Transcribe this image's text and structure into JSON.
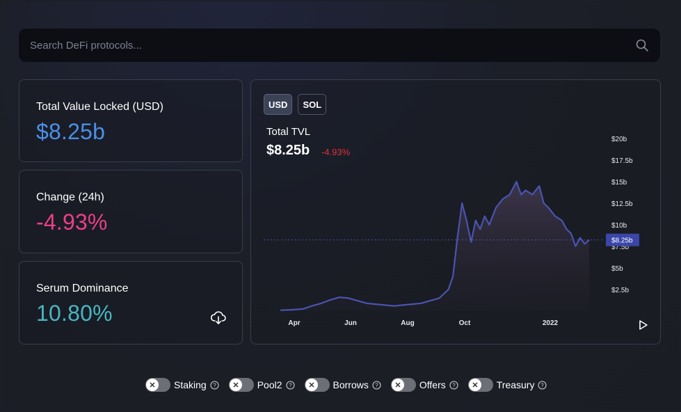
{
  "search": {
    "placeholder": "Search DeFi protocols..."
  },
  "stats": [
    {
      "label": "Total Value Locked (USD)",
      "value": "$8.25b",
      "color": "#4a90e8"
    },
    {
      "label": "Change (24h)",
      "value": "-4.93%",
      "color": "#ec3f89"
    },
    {
      "label": "Serum Dominance",
      "value": "10.80%",
      "color": "#47b6c2"
    }
  ],
  "chart": {
    "toggles": [
      {
        "label": "USD",
        "active": true
      },
      {
        "label": "SOL",
        "active": false
      }
    ],
    "title": "Total TVL",
    "value": "$8.25b",
    "change": "-4.93%",
    "current_label": "$8.25b"
  },
  "chart_data": {
    "type": "area",
    "x_ticks": [
      "Apr",
      "Jun",
      "Aug",
      "Oct",
      "2022"
    ],
    "y_ticks": [
      "$2.5b",
      "$5b",
      "$7.5b",
      "$10b",
      "$12.5b",
      "$15b",
      "$17.5b",
      "$20b"
    ],
    "ylim": [
      0,
      20
    ],
    "current_value": 8.25,
    "color": "#4a54b0",
    "points": [
      {
        "t": 0,
        "v": 0.1
      },
      {
        "t": 5,
        "v": 0.15
      },
      {
        "t": 10,
        "v": 0.25
      },
      {
        "t": 14,
        "v": 0.6
      },
      {
        "t": 18,
        "v": 0.9
      },
      {
        "t": 22,
        "v": 1.3
      },
      {
        "t": 26,
        "v": 1.6
      },
      {
        "t": 30,
        "v": 1.5
      },
      {
        "t": 34,
        "v": 1.2
      },
      {
        "t": 38,
        "v": 0.9
      },
      {
        "t": 42,
        "v": 0.8
      },
      {
        "t": 46,
        "v": 0.7
      },
      {
        "t": 50,
        "v": 0.6
      },
      {
        "t": 54,
        "v": 0.7
      },
      {
        "t": 58,
        "v": 0.8
      },
      {
        "t": 62,
        "v": 0.9
      },
      {
        "t": 66,
        "v": 1.2
      },
      {
        "t": 70,
        "v": 1.5
      },
      {
        "t": 74,
        "v": 2.5
      },
      {
        "t": 76,
        "v": 4.0
      },
      {
        "t": 78,
        "v": 8.5
      },
      {
        "t": 80,
        "v": 12.5
      },
      {
        "t": 82,
        "v": 10.5
      },
      {
        "t": 84,
        "v": 8.0
      },
      {
        "t": 86,
        "v": 10.5
      },
      {
        "t": 88,
        "v": 9.5
      },
      {
        "t": 90,
        "v": 11.0
      },
      {
        "t": 92,
        "v": 10.0
      },
      {
        "t": 95,
        "v": 12.0
      },
      {
        "t": 98,
        "v": 13.0
      },
      {
        "t": 101,
        "v": 13.5
      },
      {
        "t": 104,
        "v": 15.0
      },
      {
        "t": 106,
        "v": 13.5
      },
      {
        "t": 108,
        "v": 14.0
      },
      {
        "t": 111,
        "v": 13.5
      },
      {
        "t": 114,
        "v": 14.5
      },
      {
        "t": 116,
        "v": 12.5
      },
      {
        "t": 118,
        "v": 12.0
      },
      {
        "t": 121,
        "v": 11.0
      },
      {
        "t": 124,
        "v": 10.5
      },
      {
        "t": 126,
        "v": 9.5
      },
      {
        "t": 128,
        "v": 9.0
      },
      {
        "t": 130,
        "v": 7.5
      },
      {
        "t": 132,
        "v": 8.5
      },
      {
        "t": 134,
        "v": 7.8
      },
      {
        "t": 136,
        "v": 8.25
      }
    ]
  },
  "filters": [
    {
      "label": "Staking"
    },
    {
      "label": "Pool2"
    },
    {
      "label": "Borrows"
    },
    {
      "label": "Offers"
    },
    {
      "label": "Treasury"
    }
  ]
}
